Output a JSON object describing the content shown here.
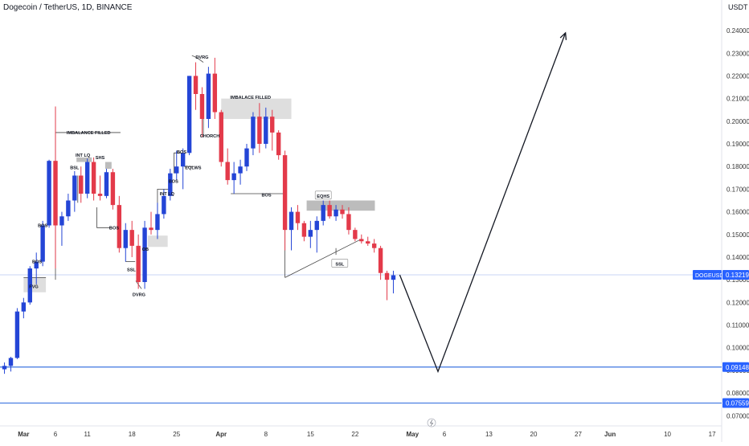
{
  "header": {
    "symbol_title": "Dogecoin / TetherUS, 1D, BINANCE",
    "currency": "USDT"
  },
  "colors": {
    "up": "#2445d6",
    "down": "#e33a4a",
    "level_line": "#3d74e0",
    "price_tag": "#2962ff",
    "zone": "#d6d6d6",
    "zone_dark": "#b0b0b0",
    "text": "#131722",
    "axis_text": "#333333"
  },
  "chart_data": {
    "type": "candlestick",
    "price_axis": {
      "ticks": [
        0.07,
        0.08,
        0.09,
        0.1,
        0.11,
        0.12,
        0.13,
        0.14,
        0.15,
        0.16,
        0.17,
        0.18,
        0.19,
        0.2,
        0.21,
        0.22,
        0.23,
        0.24
      ],
      "tick_labels": [
        "0.07000",
        "0.08000",
        "0.09000",
        "0.10000",
        "0.11000",
        "0.12000",
        "0.13000",
        "0.14000",
        "0.15000",
        "0.16000",
        "0.17000",
        "0.18000",
        "0.19000",
        "0.20000",
        "0.21000",
        "0.22000",
        "0.23000",
        "0.24000"
      ],
      "range": [
        0.0655,
        0.2535
      ]
    },
    "time_axis": {
      "labels": [
        {
          "day": 0,
          "text": "Mar"
        },
        {
          "day": 5,
          "text": "6"
        },
        {
          "day": 10,
          "text": "11"
        },
        {
          "day": 17,
          "text": "18"
        },
        {
          "day": 24,
          "text": "25"
        },
        {
          "day": 31,
          "text": "Apr"
        },
        {
          "day": 38,
          "text": "8"
        },
        {
          "day": 45,
          "text": "15"
        },
        {
          "day": 52,
          "text": "22"
        },
        {
          "day": 61,
          "text": "May"
        },
        {
          "day": 66,
          "text": "6"
        },
        {
          "day": 73,
          "text": "13"
        },
        {
          "day": 80,
          "text": "20"
        },
        {
          "day": 87,
          "text": "27"
        },
        {
          "day": 92,
          "text": "Jun"
        },
        {
          "day": 101,
          "text": "10"
        },
        {
          "day": 108,
          "text": "17"
        }
      ],
      "range": [
        -3.7,
        109.5
      ]
    },
    "candles": [
      {
        "day": -3,
        "o": 0.0905,
        "h": 0.0935,
        "l": 0.0885,
        "c": 0.092
      },
      {
        "day": -2,
        "o": 0.092,
        "h": 0.096,
        "l": 0.0895,
        "c": 0.0955
      },
      {
        "day": -1,
        "o": 0.0955,
        "h": 0.1175,
        "l": 0.095,
        "c": 0.116
      },
      {
        "day": 0,
        "o": 0.116,
        "h": 0.122,
        "l": 0.113,
        "c": 0.12
      },
      {
        "day": 1,
        "o": 0.12,
        "h": 0.136,
        "l": 0.119,
        "c": 0.135
      },
      {
        "day": 2,
        "o": 0.135,
        "h": 0.142,
        "l": 0.128,
        "c": 0.138
      },
      {
        "day": 3,
        "o": 0.138,
        "h": 0.156,
        "l": 0.136,
        "c": 0.154
      },
      {
        "day": 4,
        "o": 0.154,
        "h": 0.183,
        "l": 0.153,
        "c": 0.1825
      },
      {
        "day": 5,
        "o": 0.1825,
        "h": 0.2065,
        "l": 0.135,
        "c": 0.154
      },
      {
        "day": 6,
        "o": 0.154,
        "h": 0.16,
        "l": 0.145,
        "c": 0.158
      },
      {
        "day": 7,
        "o": 0.158,
        "h": 0.168,
        "l": 0.156,
        "c": 0.165
      },
      {
        "day": 8,
        "o": 0.165,
        "h": 0.178,
        "l": 0.16,
        "c": 0.176
      },
      {
        "day": 9,
        "o": 0.176,
        "h": 0.18,
        "l": 0.164,
        "c": 0.168
      },
      {
        "day": 10,
        "o": 0.168,
        "h": 0.1835,
        "l": 0.166,
        "c": 0.182
      },
      {
        "day": 11,
        "o": 0.182,
        "h": 0.184,
        "l": 0.165,
        "c": 0.168
      },
      {
        "day": 12,
        "o": 0.168,
        "h": 0.176,
        "l": 0.165,
        "c": 0.167
      },
      {
        "day": 13,
        "o": 0.167,
        "h": 0.179,
        "l": 0.166,
        "c": 0.1775
      },
      {
        "day": 14,
        "o": 0.1775,
        "h": 0.179,
        "l": 0.161,
        "c": 0.163
      },
      {
        "day": 15,
        "o": 0.163,
        "h": 0.167,
        "l": 0.142,
        "c": 0.144
      },
      {
        "day": 16,
        "o": 0.144,
        "h": 0.155,
        "l": 0.138,
        "c": 0.152
      },
      {
        "day": 17,
        "o": 0.152,
        "h": 0.156,
        "l": 0.14,
        "c": 0.145
      },
      {
        "day": 18,
        "o": 0.145,
        "h": 0.15,
        "l": 0.126,
        "c": 0.129
      },
      {
        "day": 19,
        "o": 0.129,
        "h": 0.156,
        "l": 0.126,
        "c": 0.153
      },
      {
        "day": 20,
        "o": 0.153,
        "h": 0.16,
        "l": 0.15,
        "c": 0.152
      },
      {
        "day": 21,
        "o": 0.152,
        "h": 0.164,
        "l": 0.148,
        "c": 0.159
      },
      {
        "day": 22,
        "o": 0.159,
        "h": 0.17,
        "l": 0.157,
        "c": 0.167
      },
      {
        "day": 23,
        "o": 0.167,
        "h": 0.179,
        "l": 0.165,
        "c": 0.177
      },
      {
        "day": 24,
        "o": 0.177,
        "h": 0.187,
        "l": 0.174,
        "c": 0.18
      },
      {
        "day": 25,
        "o": 0.18,
        "h": 0.188,
        "l": 0.17,
        "c": 0.186
      },
      {
        "day": 26,
        "o": 0.186,
        "h": 0.22,
        "l": 0.185,
        "c": 0.22
      },
      {
        "day": 27,
        "o": 0.22,
        "h": 0.226,
        "l": 0.205,
        "c": 0.212
      },
      {
        "day": 28,
        "o": 0.212,
        "h": 0.215,
        "l": 0.193,
        "c": 0.201
      },
      {
        "day": 29,
        "o": 0.201,
        "h": 0.224,
        "l": 0.197,
        "c": 0.221
      },
      {
        "day": 30,
        "o": 0.221,
        "h": 0.228,
        "l": 0.201,
        "c": 0.204
      },
      {
        "day": 31,
        "o": 0.204,
        "h": 0.205,
        "l": 0.18,
        "c": 0.182
      },
      {
        "day": 32,
        "o": 0.182,
        "h": 0.188,
        "l": 0.172,
        "c": 0.174
      },
      {
        "day": 33,
        "o": 0.174,
        "h": 0.182,
        "l": 0.168,
        "c": 0.177
      },
      {
        "day": 34,
        "o": 0.177,
        "h": 0.183,
        "l": 0.172,
        "c": 0.18
      },
      {
        "day": 35,
        "o": 0.18,
        "h": 0.19,
        "l": 0.178,
        "c": 0.188
      },
      {
        "day": 36,
        "o": 0.188,
        "h": 0.204,
        "l": 0.185,
        "c": 0.202
      },
      {
        "day": 37,
        "o": 0.202,
        "h": 0.208,
        "l": 0.186,
        "c": 0.19
      },
      {
        "day": 38,
        "o": 0.19,
        "h": 0.206,
        "l": 0.188,
        "c": 0.202
      },
      {
        "day": 39,
        "o": 0.202,
        "h": 0.205,
        "l": 0.187,
        "c": 0.195
      },
      {
        "day": 40,
        "o": 0.195,
        "h": 0.196,
        "l": 0.183,
        "c": 0.185
      },
      {
        "day": 41,
        "o": 0.185,
        "h": 0.187,
        "l": 0.143,
        "c": 0.152
      },
      {
        "day": 42,
        "o": 0.152,
        "h": 0.162,
        "l": 0.143,
        "c": 0.16
      },
      {
        "day": 43,
        "o": 0.16,
        "h": 0.163,
        "l": 0.152,
        "c": 0.155
      },
      {
        "day": 44,
        "o": 0.155,
        "h": 0.156,
        "l": 0.147,
        "c": 0.149
      },
      {
        "day": 45,
        "o": 0.149,
        "h": 0.156,
        "l": 0.144,
        "c": 0.152
      },
      {
        "day": 46,
        "o": 0.152,
        "h": 0.158,
        "l": 0.142,
        "c": 0.156
      },
      {
        "day": 47,
        "o": 0.156,
        "h": 0.165,
        "l": 0.154,
        "c": 0.163
      },
      {
        "day": 48,
        "o": 0.163,
        "h": 0.165,
        "l": 0.157,
        "c": 0.158
      },
      {
        "day": 49,
        "o": 0.158,
        "h": 0.163,
        "l": 0.156,
        "c": 0.161
      },
      {
        "day": 50,
        "o": 0.161,
        "h": 0.163,
        "l": 0.157,
        "c": 0.159
      },
      {
        "day": 51,
        "o": 0.159,
        "h": 0.162,
        "l": 0.15,
        "c": 0.152
      },
      {
        "day": 52,
        "o": 0.152,
        "h": 0.153,
        "l": 0.147,
        "c": 0.148
      },
      {
        "day": 53,
        "o": 0.148,
        "h": 0.15,
        "l": 0.146,
        "c": 0.147
      },
      {
        "day": 54,
        "o": 0.147,
        "h": 0.149,
        "l": 0.145,
        "c": 0.146
      },
      {
        "day": 55,
        "o": 0.146,
        "h": 0.148,
        "l": 0.142,
        "c": 0.144
      },
      {
        "day": 56,
        "o": 0.144,
        "h": 0.145,
        "l": 0.13,
        "c": 0.133
      },
      {
        "day": 57,
        "o": 0.133,
        "h": 0.134,
        "l": 0.121,
        "c": 0.13
      },
      {
        "day": 58,
        "o": 0.13,
        "h": 0.134,
        "l": 0.124,
        "c": 0.132
      }
    ],
    "levels": [
      {
        "price": 0.09148,
        "label": "0.09148"
      },
      {
        "price": 0.07559,
        "label": "0.07559"
      }
    ],
    "current_price": {
      "price": 0.13219,
      "symbol": "DOGEUSDT",
      "label": "0.13219"
    },
    "projection": [
      {
        "day": 59,
        "price": 0.1322
      },
      {
        "day": 65,
        "price": 0.0895
      },
      {
        "day": 85,
        "price": 0.239
      }
    ],
    "zones": [
      {
        "d1": 0,
        "d2": 3.5,
        "p1": 0.1245,
        "p2": 0.131,
        "style": "light"
      },
      {
        "d1": 8.3,
        "d2": 10.7,
        "p1": 0.182,
        "p2": 0.184,
        "style": "dark"
      },
      {
        "d1": 12.8,
        "d2": 13.8,
        "p1": 0.179,
        "p2": 0.182,
        "style": "dark"
      },
      {
        "d1": 19.5,
        "d2": 22.6,
        "p1": 0.1445,
        "p2": 0.1495,
        "style": "light"
      },
      {
        "d1": 31,
        "d2": 42,
        "p1": 0.201,
        "p2": 0.21,
        "style": "light"
      },
      {
        "d1": 44.4,
        "d2": 55.1,
        "p1": 0.1605,
        "p2": 0.165,
        "style": "dark"
      }
    ],
    "annotations": [
      {
        "text": "FVG",
        "day": 1.6,
        "price": 0.127
      },
      {
        "text": "BOS",
        "day": 3.0,
        "price": 0.154
      },
      {
        "text": "BOS",
        "day": 2.1,
        "price": 0.138
      },
      {
        "text": "BSL",
        "day": 8.0,
        "price": 0.1795
      },
      {
        "text": "INT LQ",
        "day": 9.3,
        "price": 0.185
      },
      {
        "text": "IMBALANCE FILLED",
        "day": 10.2,
        "price": 0.195
      },
      {
        "text": "SHS",
        "day": 12.0,
        "price": 0.184
      },
      {
        "text": "BOS",
        "day": 14.2,
        "price": 0.153
      },
      {
        "text": "SSL",
        "day": 16.9,
        "price": 0.1345
      },
      {
        "text": "OB",
        "day": 19.1,
        "price": 0.1435
      },
      {
        "text": "DVRG",
        "day": 18.1,
        "price": 0.1235
      },
      {
        "text": "INT LQ",
        "day": 22.5,
        "price": 0.168
      },
      {
        "text": "BOS",
        "day": 23.5,
        "price": 0.1735
      },
      {
        "text": "BOS",
        "day": 24.8,
        "price": 0.1865
      },
      {
        "text": "EQLWS",
        "day": 26.6,
        "price": 0.1795
      },
      {
        "text": "DVRG",
        "day": 28.0,
        "price": 0.2283
      },
      {
        "text": "CHORCH",
        "day": 29.2,
        "price": 0.1935
      },
      {
        "text": "IMBALACE FILLED",
        "day": 35.6,
        "price": 0.2105
      },
      {
        "text": "BOS",
        "day": 38.1,
        "price": 0.1675
      },
      {
        "text": "EQHS",
        "day": 47.0,
        "price": 0.167
      },
      {
        "text": "SSL",
        "day": 49.6,
        "price": 0.137
      }
    ]
  }
}
